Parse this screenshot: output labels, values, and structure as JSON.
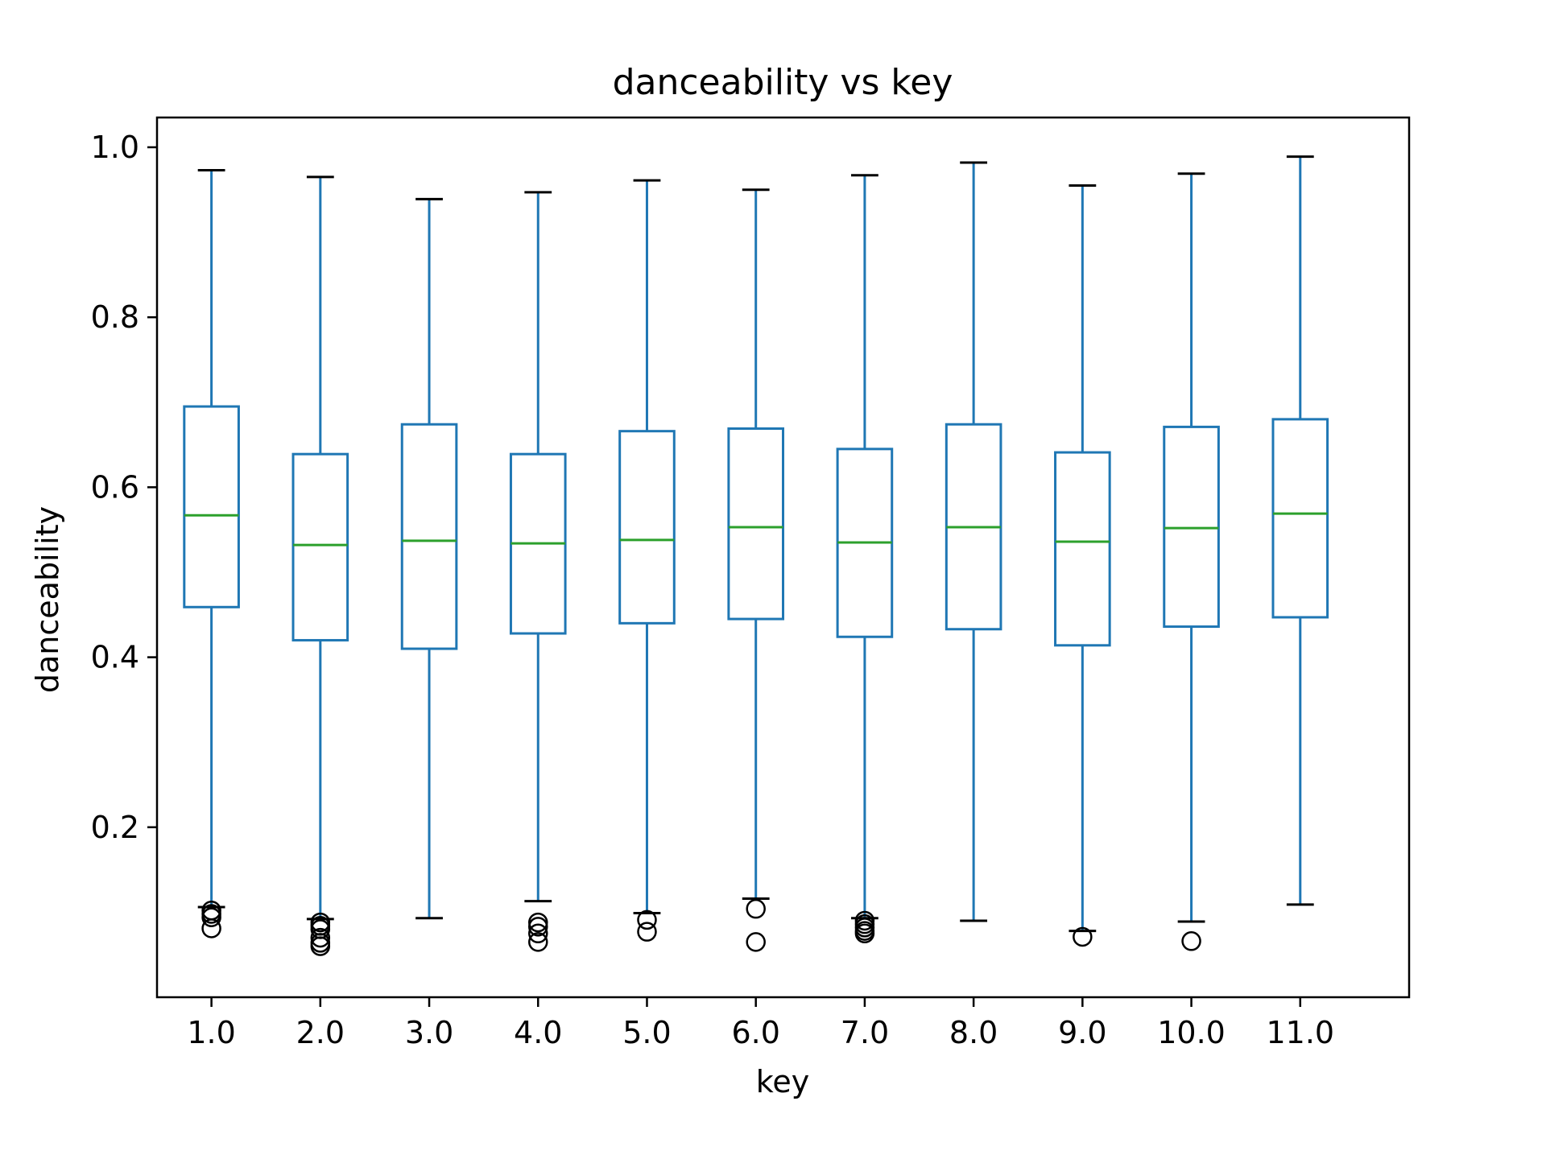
{
  "chart_data": {
    "type": "box",
    "title": "danceability vs key",
    "xlabel": "key",
    "ylabel": "danceability",
    "ylim": [
      0.0,
      1.035
    ],
    "yticks": [
      0.2,
      0.4,
      0.6,
      0.8,
      1.0
    ],
    "ytick_labels": [
      "0.2",
      "0.4",
      "0.6",
      "0.8",
      "1.0"
    ],
    "categories": [
      "1.0",
      "2.0",
      "3.0",
      "4.0",
      "5.0",
      "6.0",
      "7.0",
      "8.0",
      "9.0",
      "10.0",
      "11.0"
    ],
    "boxes": [
      {
        "whisker_low": 0.106,
        "q1": 0.459,
        "median": 0.567,
        "q3": 0.695,
        "whisker_high": 0.973,
        "outliers": [
          0.102,
          0.098,
          0.094,
          0.081
        ]
      },
      {
        "whisker_low": 0.092,
        "q1": 0.42,
        "median": 0.532,
        "q3": 0.639,
        "whisker_high": 0.965,
        "outliers": [
          0.088,
          0.084,
          0.08,
          0.07,
          0.064,
          0.06
        ]
      },
      {
        "whisker_low": 0.093,
        "q1": 0.41,
        "median": 0.537,
        "q3": 0.674,
        "whisker_high": 0.939,
        "outliers": []
      },
      {
        "whisker_low": 0.113,
        "q1": 0.428,
        "median": 0.534,
        "q3": 0.639,
        "whisker_high": 0.947,
        "outliers": [
          0.088,
          0.083,
          0.075,
          0.065
        ]
      },
      {
        "whisker_low": 0.099,
        "q1": 0.44,
        "median": 0.538,
        "q3": 0.666,
        "whisker_high": 0.961,
        "outliers": [
          0.091,
          0.077
        ]
      },
      {
        "whisker_low": 0.116,
        "q1": 0.445,
        "median": 0.553,
        "q3": 0.669,
        "whisker_high": 0.95,
        "outliers": [
          0.104,
          0.065
        ]
      },
      {
        "whisker_low": 0.093,
        "q1": 0.424,
        "median": 0.535,
        "q3": 0.645,
        "whisker_high": 0.967,
        "outliers": [
          0.09,
          0.086,
          0.082,
          0.078,
          0.075
        ]
      },
      {
        "whisker_low": 0.09,
        "q1": 0.433,
        "median": 0.553,
        "q3": 0.674,
        "whisker_high": 0.982,
        "outliers": []
      },
      {
        "whisker_low": 0.078,
        "q1": 0.414,
        "median": 0.536,
        "q3": 0.641,
        "whisker_high": 0.955,
        "outliers": [
          0.071
        ]
      },
      {
        "whisker_low": 0.089,
        "q1": 0.436,
        "median": 0.552,
        "q3": 0.671,
        "whisker_high": 0.969,
        "outliers": [
          0.066
        ]
      },
      {
        "whisker_low": 0.109,
        "q1": 0.447,
        "median": 0.569,
        "q3": 0.68,
        "whisker_high": 0.989,
        "outliers": []
      }
    ],
    "grid": false,
    "colors": {
      "box": "#1f77b4",
      "median": "#2ca02c",
      "cap": "#000000",
      "outlier": "#000000",
      "axes": "#000000"
    }
  }
}
